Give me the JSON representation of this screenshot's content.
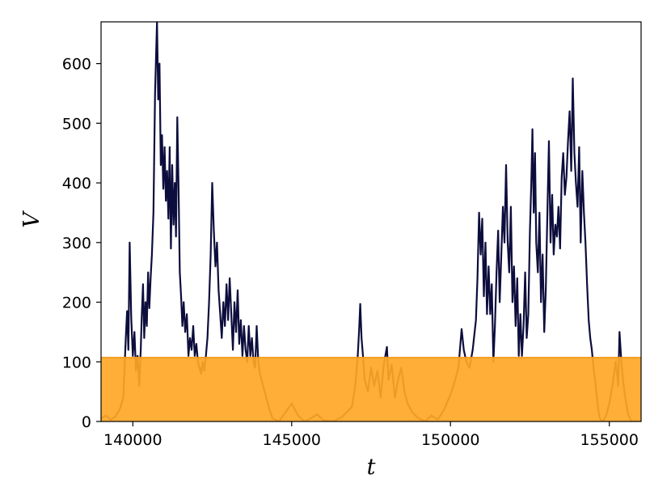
{
  "chart_data": {
    "type": "line",
    "xlabel": "t",
    "ylabel": "V",
    "xlim": [
      139000,
      156000
    ],
    "ylim": [
      0,
      670
    ],
    "xticks": [
      140000,
      145000,
      150000,
      155000
    ],
    "xtick_labels": [
      "140000",
      "145000",
      "150000",
      "155000"
    ],
    "yticks": [
      0,
      100,
      200,
      300,
      400,
      500,
      600
    ],
    "ytick_labels": [
      "0",
      "100",
      "200",
      "300",
      "400",
      "500",
      "600"
    ],
    "grid": false,
    "legend": "none",
    "threshold_band": {
      "ymin": 0,
      "ymax": 107,
      "color": "#ffa726",
      "opacity": 0.92
    },
    "series": [
      {
        "color": "#0d0d3d",
        "points": [
          [
            139000,
            5
          ],
          [
            139150,
            10
          ],
          [
            139300,
            3
          ],
          [
            139450,
            8
          ],
          [
            139600,
            22
          ],
          [
            139700,
            40
          ],
          [
            139780,
            140
          ],
          [
            139820,
            185
          ],
          [
            139860,
            120
          ],
          [
            139900,
            300
          ],
          [
            139950,
            175
          ],
          [
            140000,
            110
          ],
          [
            140050,
            150
          ],
          [
            140100,
            85
          ],
          [
            140150,
            110
          ],
          [
            140200,
            60
          ],
          [
            140250,
            120
          ],
          [
            140280,
            175
          ],
          [
            140320,
            230
          ],
          [
            140360,
            140
          ],
          [
            140400,
            200
          ],
          [
            140440,
            160
          ],
          [
            140480,
            250
          ],
          [
            140520,
            190
          ],
          [
            140560,
            240
          ],
          [
            140600,
            280
          ],
          [
            140650,
            350
          ],
          [
            140700,
            550
          ],
          [
            140760,
            670
          ],
          [
            140800,
            540
          ],
          [
            140840,
            600
          ],
          [
            140880,
            430
          ],
          [
            140920,
            480
          ],
          [
            140960,
            390
          ],
          [
            141000,
            460
          ],
          [
            141040,
            370
          ],
          [
            141080,
            420
          ],
          [
            141120,
            340
          ],
          [
            141160,
            460
          ],
          [
            141200,
            290
          ],
          [
            141240,
            430
          ],
          [
            141280,
            330
          ],
          [
            141320,
            400
          ],
          [
            141360,
            310
          ],
          [
            141400,
            510
          ],
          [
            141440,
            390
          ],
          [
            141480,
            250
          ],
          [
            141520,
            210
          ],
          [
            141560,
            160
          ],
          [
            141600,
            200
          ],
          [
            141650,
            150
          ],
          [
            141700,
            180
          ],
          [
            141750,
            110
          ],
          [
            141800,
            140
          ],
          [
            141850,
            120
          ],
          [
            141900,
            160
          ],
          [
            141950,
            110
          ],
          [
            142000,
            130
          ],
          [
            142050,
            100
          ],
          [
            142100,
            90
          ],
          [
            142150,
            80
          ],
          [
            142200,
            100
          ],
          [
            142250,
            85
          ],
          [
            142300,
            110
          ],
          [
            142350,
            140
          ],
          [
            142400,
            200
          ],
          [
            142450,
            280
          ],
          [
            142500,
            400
          ],
          [
            142550,
            320
          ],
          [
            142600,
            260
          ],
          [
            142650,
            300
          ],
          [
            142700,
            220
          ],
          [
            142750,
            180
          ],
          [
            142800,
            140
          ],
          [
            142850,
            200
          ],
          [
            142900,
            160
          ],
          [
            142950,
            230
          ],
          [
            143000,
            170
          ],
          [
            143050,
            240
          ],
          [
            143100,
            180
          ],
          [
            143150,
            120
          ],
          [
            143200,
            200
          ],
          [
            143250,
            150
          ],
          [
            143300,
            220
          ],
          [
            143350,
            130
          ],
          [
            143400,
            170
          ],
          [
            143450,
            110
          ],
          [
            143500,
            160
          ],
          [
            143550,
            120
          ],
          [
            143600,
            100
          ],
          [
            143650,
            160
          ],
          [
            143700,
            110
          ],
          [
            143750,
            140
          ],
          [
            143800,
            100
          ],
          [
            143850,
            90
          ],
          [
            143900,
            160
          ],
          [
            143950,
            100
          ],
          [
            144000,
            80
          ],
          [
            144100,
            60
          ],
          [
            144200,
            40
          ],
          [
            144300,
            20
          ],
          [
            144400,
            5
          ],
          [
            144600,
            0
          ],
          [
            144800,
            15
          ],
          [
            145000,
            30
          ],
          [
            145200,
            10
          ],
          [
            145400,
            0
          ],
          [
            145600,
            5
          ],
          [
            145800,
            12
          ],
          [
            146000,
            2
          ],
          [
            146300,
            0
          ],
          [
            146600,
            8
          ],
          [
            146900,
            25
          ],
          [
            147000,
            60
          ],
          [
            147080,
            110
          ],
          [
            147120,
            150
          ],
          [
            147160,
            197
          ],
          [
            147200,
            140
          ],
          [
            147260,
            100
          ],
          [
            147300,
            70
          ],
          [
            147400,
            50
          ],
          [
            147500,
            90
          ],
          [
            147600,
            60
          ],
          [
            147700,
            85
          ],
          [
            147800,
            40
          ],
          [
            147900,
            95
          ],
          [
            148000,
            125
          ],
          [
            148050,
            70
          ],
          [
            148150,
            95
          ],
          [
            148250,
            40
          ],
          [
            148350,
            70
          ],
          [
            148450,
            90
          ],
          [
            148550,
            50
          ],
          [
            148650,
            30
          ],
          [
            148800,
            15
          ],
          [
            149000,
            5
          ],
          [
            149200,
            0
          ],
          [
            149400,
            10
          ],
          [
            149600,
            3
          ],
          [
            149800,
            20
          ],
          [
            150000,
            45
          ],
          [
            150150,
            70
          ],
          [
            150250,
            90
          ],
          [
            150350,
            155
          ],
          [
            150420,
            120
          ],
          [
            150500,
            100
          ],
          [
            150600,
            90
          ],
          [
            150700,
            120
          ],
          [
            150800,
            170
          ],
          [
            150850,
            240
          ],
          [
            150900,
            350
          ],
          [
            150950,
            280
          ],
          [
            151000,
            340
          ],
          [
            151050,
            210
          ],
          [
            151100,
            300
          ],
          [
            151150,
            180
          ],
          [
            151200,
            260
          ],
          [
            151250,
            180
          ],
          [
            151300,
            230
          ],
          [
            151350,
            100
          ],
          [
            151400,
            160
          ],
          [
            151450,
            250
          ],
          [
            151500,
            320
          ],
          [
            151550,
            200
          ],
          [
            151600,
            280
          ],
          [
            151650,
            360
          ],
          [
            151700,
            300
          ],
          [
            151750,
            430
          ],
          [
            151800,
            300
          ],
          [
            151850,
            250
          ],
          [
            151900,
            360
          ],
          [
            151950,
            200
          ],
          [
            152000,
            260
          ],
          [
            152050,
            160
          ],
          [
            152100,
            240
          ],
          [
            152150,
            110
          ],
          [
            152200,
            180
          ],
          [
            152250,
            110
          ],
          [
            152300,
            160
          ],
          [
            152350,
            250
          ],
          [
            152400,
            140
          ],
          [
            152450,
            180
          ],
          [
            152500,
            320
          ],
          [
            152550,
            410
          ],
          [
            152580,
            490
          ],
          [
            152620,
            350
          ],
          [
            152660,
            450
          ],
          [
            152700,
            300
          ],
          [
            152750,
            250
          ],
          [
            152800,
            350
          ],
          [
            152850,
            200
          ],
          [
            152900,
            280
          ],
          [
            152950,
            150
          ],
          [
            153000,
            220
          ],
          [
            153050,
            350
          ],
          [
            153100,
            470
          ],
          [
            153150,
            300
          ],
          [
            153200,
            380
          ],
          [
            153250,
            280
          ],
          [
            153300,
            330
          ],
          [
            153350,
            310
          ],
          [
            153400,
            360
          ],
          [
            153450,
            290
          ],
          [
            153500,
            410
          ],
          [
            153550,
            450
          ],
          [
            153600,
            380
          ],
          [
            153650,
            410
          ],
          [
            153700,
            470
          ],
          [
            153750,
            520
          ],
          [
            153800,
            420
          ],
          [
            153850,
            575
          ],
          [
            153900,
            450
          ],
          [
            153950,
            400
          ],
          [
            154000,
            360
          ],
          [
            154050,
            460
          ],
          [
            154100,
            300
          ],
          [
            154150,
            420
          ],
          [
            154200,
            350
          ],
          [
            154250,
            300
          ],
          [
            154300,
            230
          ],
          [
            154350,
            170
          ],
          [
            154400,
            140
          ],
          [
            154450,
            120
          ],
          [
            154500,
            90
          ],
          [
            154550,
            70
          ],
          [
            154600,
            45
          ],
          [
            154650,
            20
          ],
          [
            154700,
            5
          ],
          [
            154800,
            0
          ],
          [
            154900,
            10
          ],
          [
            155000,
            30
          ],
          [
            155100,
            60
          ],
          [
            155200,
            100
          ],
          [
            155280,
            60
          ],
          [
            155320,
            150
          ],
          [
            155380,
            100
          ],
          [
            155430,
            70
          ],
          [
            155500,
            40
          ],
          [
            155600,
            10
          ],
          [
            155700,
            0
          ],
          [
            155800,
            0
          ],
          [
            156000,
            0
          ]
        ]
      }
    ]
  }
}
